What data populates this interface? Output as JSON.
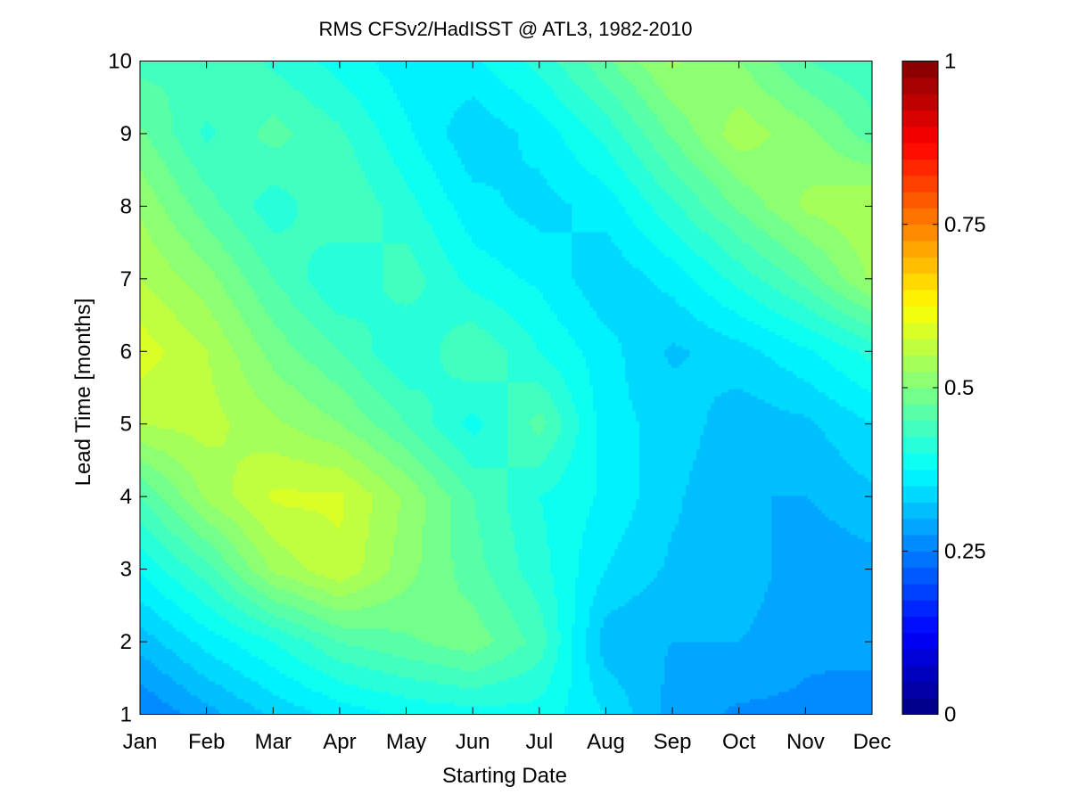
{
  "chart_data": {
    "type": "heatmap",
    "title": "RMS CFSv2/HadISST @ ATL3, 1982-2010",
    "xlabel": "Starting Date",
    "ylabel": "Lead Time [months]",
    "x": [
      "Jan",
      "Feb",
      "Mar",
      "Apr",
      "May",
      "Jun",
      "Jul",
      "Aug",
      "Sep",
      "Oct",
      "Nov",
      "Dec"
    ],
    "y": [
      1,
      2,
      3,
      4,
      5,
      6,
      7,
      8,
      9,
      10
    ],
    "z": [
      [
        0.25,
        0.29,
        0.33,
        0.36,
        0.38,
        0.39,
        0.39,
        0.35,
        0.29,
        0.27,
        0.27,
        0.25
      ],
      [
        0.31,
        0.36,
        0.4,
        0.45,
        0.47,
        0.49,
        0.44,
        0.31,
        0.3,
        0.3,
        0.28,
        0.29
      ],
      [
        0.38,
        0.44,
        0.53,
        0.57,
        0.51,
        0.46,
        0.41,
        0.35,
        0.32,
        0.32,
        0.28,
        0.29
      ],
      [
        0.45,
        0.53,
        0.58,
        0.58,
        0.52,
        0.45,
        0.4,
        0.37,
        0.33,
        0.3,
        0.3,
        0.32
      ],
      [
        0.55,
        0.56,
        0.53,
        0.5,
        0.45,
        0.39,
        0.46,
        0.36,
        0.34,
        0.31,
        0.32,
        0.35
      ],
      [
        0.59,
        0.55,
        0.49,
        0.45,
        0.4,
        0.45,
        0.4,
        0.36,
        0.32,
        0.34,
        0.37,
        0.41
      ],
      [
        0.55,
        0.51,
        0.45,
        0.4,
        0.44,
        0.39,
        0.37,
        0.33,
        0.36,
        0.41,
        0.46,
        0.53
      ],
      [
        0.52,
        0.46,
        0.41,
        0.45,
        0.41,
        0.36,
        0.34,
        0.36,
        0.42,
        0.48,
        0.53,
        0.55
      ],
      [
        0.48,
        0.42,
        0.46,
        0.43,
        0.38,
        0.33,
        0.36,
        0.41,
        0.48,
        0.54,
        0.51,
        0.46
      ],
      [
        0.44,
        0.45,
        0.42,
        0.39,
        0.36,
        0.37,
        0.41,
        0.47,
        0.53,
        0.5,
        0.45,
        0.43
      ]
    ],
    "xlim": [
      0,
      11
    ],
    "ylim": [
      1,
      10
    ],
    "yticks": [
      "1",
      "2",
      "3",
      "4",
      "5",
      "6",
      "7",
      "8",
      "9",
      "10"
    ],
    "colorbar": {
      "range": [
        0,
        1
      ],
      "ticks": [
        0,
        0.25,
        0.5,
        0.75,
        1
      ],
      "tick_labels": [
        "0",
        "0.25",
        "0.5",
        "0.75",
        "1"
      ],
      "colormap": "jet",
      "levels": 40
    },
    "grid": false
  }
}
